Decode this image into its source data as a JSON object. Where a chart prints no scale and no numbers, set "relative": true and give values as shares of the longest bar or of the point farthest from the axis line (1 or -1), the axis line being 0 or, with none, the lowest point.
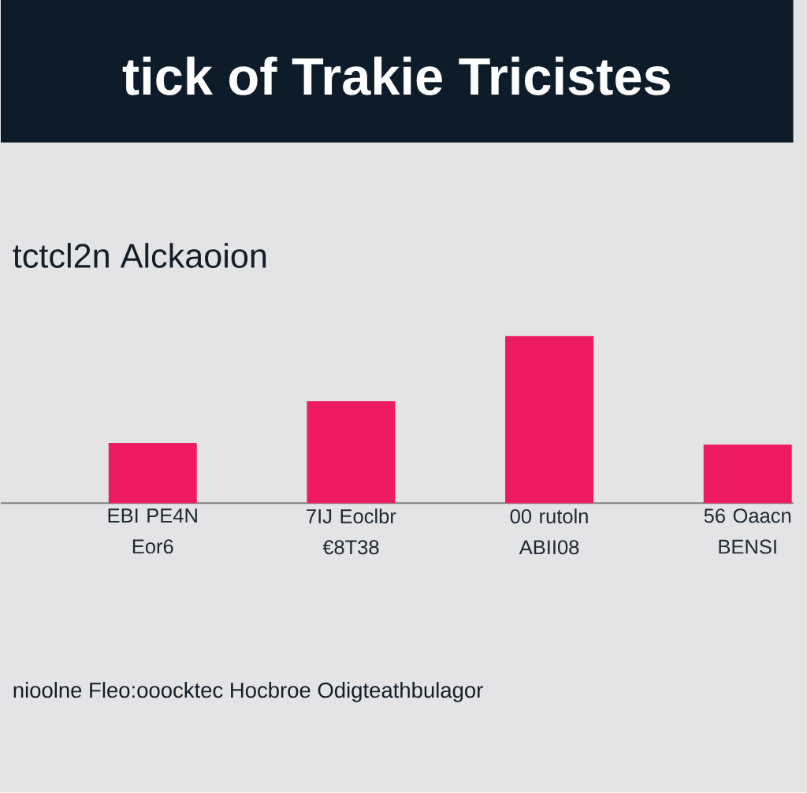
{
  "chart_data": {
    "type": "bar",
    "title": "tick of Trakie Tricistes",
    "subtitle": "tctcl2n Alckaoion",
    "categories": [
      "EBI PE4N Eor6",
      "7IJ Eoclbr €8T38",
      "00 rutoln ABII08",
      "56 Oaacn BENSI"
    ],
    "values": [
      0.36,
      0.61,
      1,
      0.35
    ],
    "color": "#ee1a62",
    "relative": true,
    "annotations": [
      "nioolne Fleo:ooocktec Hocbroe Odigteathbulagor"
    ]
  }
}
